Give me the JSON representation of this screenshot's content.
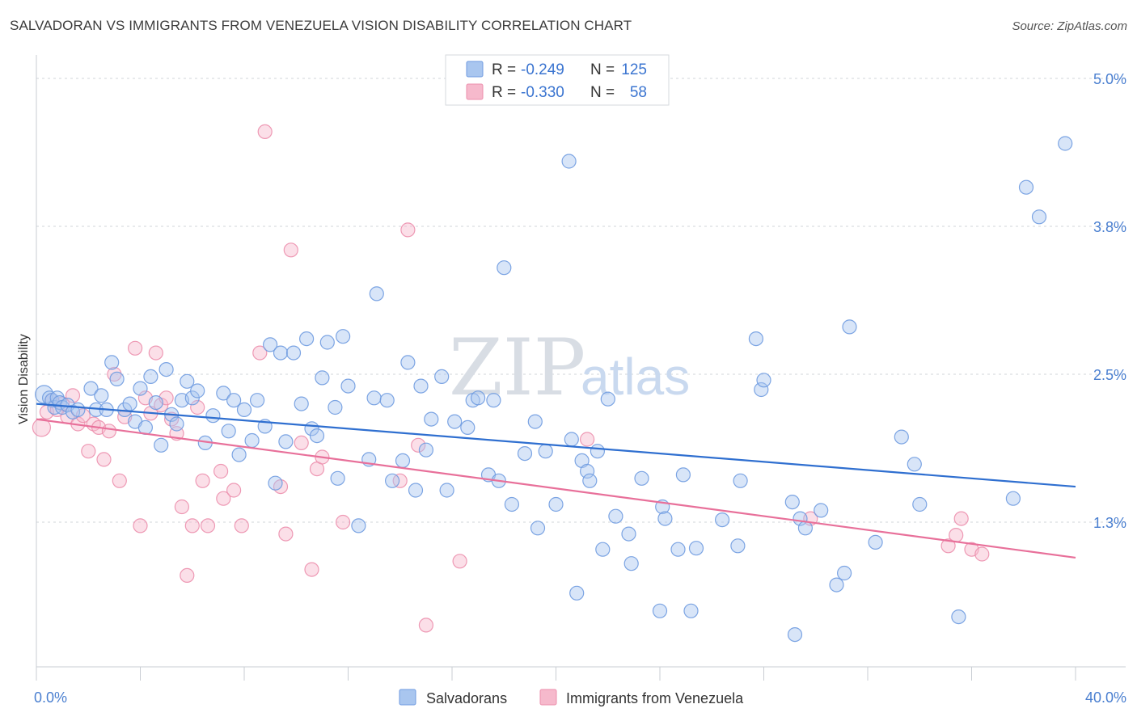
{
  "title": "SALVADORAN VS IMMIGRANTS FROM VENEZUELA VISION DISABILITY CORRELATION CHART",
  "source": "Source: ZipAtlas.com",
  "watermark": {
    "zip": "ZIP",
    "atlas": "atlas"
  },
  "colors": {
    "blue_fill": "#a9c6ef",
    "blue_stroke": "#6f9be0",
    "blue_line": "#2f6fd0",
    "pink_fill": "#f6b9cc",
    "pink_stroke": "#ec8fad",
    "pink_line": "#e8709a",
    "grid": "#d0d4da",
    "axis_text": "#4a7fd0"
  },
  "legend": {
    "rows": [
      {
        "r_label": "R =",
        "r_value": "-0.249",
        "n_label": "N =",
        "n_value": "125"
      },
      {
        "r_label": "R =",
        "r_value": "-0.330",
        "n_label": "N =",
        "n_value": "58"
      }
    ]
  },
  "chart_data": {
    "type": "scatter",
    "title": "SALVADORAN VS IMMIGRANTS FROM VENEZUELA VISION DISABILITY CORRELATION CHART",
    "xlabel": "",
    "ylabel": "Vision Disability",
    "xlim": [
      0,
      40
    ],
    "ylim": [
      0,
      5.2
    ],
    "x_tick_labels": [
      "0.0%",
      "40.0%"
    ],
    "y_ticks": [
      {
        "value": 1.25,
        "label": "1.3%"
      },
      {
        "value": 2.5,
        "label": "2.5%"
      },
      {
        "value": 3.75,
        "label": "3.8%"
      },
      {
        "value": 5.0,
        "label": "5.0%"
      }
    ],
    "legend_position": "top-center",
    "series": [
      {
        "name": "Salvadorans",
        "r": -0.249,
        "n": 125,
        "trend": {
          "x0": 0,
          "y0": 2.25,
          "x1": 40,
          "y1": 1.55
        },
        "points": [
          [
            0.3,
            2.33
          ],
          [
            0.5,
            2.3
          ],
          [
            0.6,
            2.28
          ],
          [
            0.7,
            2.22
          ],
          [
            0.8,
            2.3
          ],
          [
            0.9,
            2.26
          ],
          [
            1.0,
            2.22
          ],
          [
            1.2,
            2.24
          ],
          [
            1.4,
            2.18
          ],
          [
            1.6,
            2.2
          ],
          [
            2.1,
            2.38
          ],
          [
            2.3,
            2.2
          ],
          [
            2.5,
            2.32
          ],
          [
            2.7,
            2.2
          ],
          [
            2.9,
            2.6
          ],
          [
            3.1,
            2.46
          ],
          [
            3.4,
            2.2
          ],
          [
            3.6,
            2.25
          ],
          [
            3.8,
            2.1
          ],
          [
            4.0,
            2.38
          ],
          [
            4.2,
            2.05
          ],
          [
            4.4,
            2.48
          ],
          [
            4.6,
            2.26
          ],
          [
            4.8,
            1.9
          ],
          [
            5.0,
            2.54
          ],
          [
            5.2,
            2.16
          ],
          [
            5.4,
            2.08
          ],
          [
            5.6,
            2.28
          ],
          [
            5.8,
            2.44
          ],
          [
            6.0,
            2.3
          ],
          [
            6.2,
            2.36
          ],
          [
            6.5,
            1.92
          ],
          [
            6.8,
            2.15
          ],
          [
            7.2,
            2.34
          ],
          [
            7.4,
            2.02
          ],
          [
            7.6,
            2.28
          ],
          [
            7.8,
            1.82
          ],
          [
            8.0,
            2.2
          ],
          [
            8.3,
            1.94
          ],
          [
            8.5,
            2.28
          ],
          [
            8.8,
            2.06
          ],
          [
            9.0,
            2.75
          ],
          [
            9.2,
            1.58
          ],
          [
            9.4,
            2.68
          ],
          [
            9.6,
            1.93
          ],
          [
            9.9,
            2.68
          ],
          [
            10.2,
            2.25
          ],
          [
            10.4,
            2.8
          ],
          [
            10.6,
            2.04
          ],
          [
            10.8,
            1.98
          ],
          [
            11.0,
            2.47
          ],
          [
            11.2,
            2.77
          ],
          [
            11.5,
            2.22
          ],
          [
            11.8,
            2.82
          ],
          [
            11.6,
            1.62
          ],
          [
            12.0,
            2.4
          ],
          [
            12.4,
            1.22
          ],
          [
            12.8,
            1.78
          ],
          [
            13.0,
            2.3
          ],
          [
            13.1,
            3.18
          ],
          [
            13.5,
            2.28
          ],
          [
            13.7,
            1.6
          ],
          [
            14.1,
            1.77
          ],
          [
            14.3,
            2.6
          ],
          [
            14.6,
            1.52
          ],
          [
            14.8,
            2.4
          ],
          [
            15.0,
            1.86
          ],
          [
            15.2,
            2.12
          ],
          [
            15.6,
            2.48
          ],
          [
            15.8,
            1.52
          ],
          [
            16.1,
            2.1
          ],
          [
            16.6,
            2.05
          ],
          [
            16.8,
            2.28
          ],
          [
            17.0,
            2.3
          ],
          [
            17.4,
            1.65
          ],
          [
            17.6,
            2.28
          ],
          [
            17.8,
            1.6
          ],
          [
            18.0,
            3.4
          ],
          [
            18.3,
            1.4
          ],
          [
            18.8,
            1.83
          ],
          [
            19.2,
            2.1
          ],
          [
            19.3,
            1.2
          ],
          [
            19.6,
            1.85
          ],
          [
            20.0,
            1.4
          ],
          [
            20.5,
            4.3
          ],
          [
            20.6,
            1.95
          ],
          [
            20.8,
            0.65
          ],
          [
            21.0,
            1.77
          ],
          [
            21.2,
            1.68
          ],
          [
            21.3,
            1.6
          ],
          [
            21.6,
            1.85
          ],
          [
            21.8,
            1.02
          ],
          [
            22.0,
            2.29
          ],
          [
            22.3,
            1.3
          ],
          [
            22.8,
            1.15
          ],
          [
            22.9,
            0.9
          ],
          [
            23.3,
            1.62
          ],
          [
            24.0,
            0.5
          ],
          [
            24.1,
            1.38
          ],
          [
            24.2,
            1.28
          ],
          [
            24.7,
            1.02
          ],
          [
            24.9,
            1.65
          ],
          [
            25.2,
            0.5
          ],
          [
            25.4,
            1.03
          ],
          [
            26.4,
            1.27
          ],
          [
            27.0,
            1.05
          ],
          [
            27.1,
            1.6
          ],
          [
            27.7,
            2.8
          ],
          [
            27.9,
            2.37
          ],
          [
            28.0,
            2.45
          ],
          [
            29.1,
            1.42
          ],
          [
            29.2,
            0.3
          ],
          [
            29.4,
            1.28
          ],
          [
            29.6,
            1.2
          ],
          [
            30.2,
            1.35
          ],
          [
            30.8,
            0.72
          ],
          [
            31.3,
            2.9
          ],
          [
            31.1,
            0.82
          ],
          [
            32.3,
            1.08
          ],
          [
            33.3,
            1.97
          ],
          [
            33.8,
            1.74
          ],
          [
            34.0,
            1.4
          ],
          [
            35.5,
            0.45
          ],
          [
            37.6,
            1.45
          ],
          [
            38.1,
            4.08
          ],
          [
            38.6,
            3.83
          ],
          [
            39.6,
            4.45
          ]
        ]
      },
      {
        "name": "Immigrants from Venezuela",
        "r": -0.33,
        "n": 58,
        "trend": {
          "x0": 0,
          "y0": 2.12,
          "x1": 40,
          "y1": 0.95
        },
        "points": [
          [
            0.2,
            2.05
          ],
          [
            0.4,
            2.18
          ],
          [
            0.6,
            2.28
          ],
          [
            0.8,
            2.2
          ],
          [
            1.0,
            2.25
          ],
          [
            1.2,
            2.14
          ],
          [
            1.4,
            2.32
          ],
          [
            1.6,
            2.08
          ],
          [
            1.8,
            2.15
          ],
          [
            2.0,
            1.85
          ],
          [
            2.2,
            2.08
          ],
          [
            2.4,
            2.05
          ],
          [
            2.6,
            1.78
          ],
          [
            2.8,
            2.02
          ],
          [
            3.0,
            2.5
          ],
          [
            3.2,
            1.6
          ],
          [
            3.4,
            2.14
          ],
          [
            3.8,
            2.72
          ],
          [
            4.0,
            1.22
          ],
          [
            4.2,
            2.3
          ],
          [
            4.4,
            2.17
          ],
          [
            4.6,
            2.68
          ],
          [
            4.8,
            2.24
          ],
          [
            5.0,
            2.3
          ],
          [
            5.2,
            2.12
          ],
          [
            5.4,
            2.0
          ],
          [
            5.6,
            1.38
          ],
          [
            5.8,
            0.8
          ],
          [
            6.0,
            1.22
          ],
          [
            6.2,
            2.22
          ],
          [
            6.4,
            1.6
          ],
          [
            6.6,
            1.22
          ],
          [
            7.1,
            1.68
          ],
          [
            7.2,
            1.45
          ],
          [
            7.6,
            1.52
          ],
          [
            7.9,
            1.22
          ],
          [
            8.6,
            2.68
          ],
          [
            8.8,
            4.55
          ],
          [
            9.4,
            1.55
          ],
          [
            9.6,
            1.15
          ],
          [
            9.8,
            3.55
          ],
          [
            10.2,
            1.92
          ],
          [
            10.6,
            0.85
          ],
          [
            10.8,
            1.7
          ],
          [
            11.0,
            1.8
          ],
          [
            11.8,
            1.25
          ],
          [
            14.0,
            1.6
          ],
          [
            14.3,
            3.72
          ],
          [
            14.7,
            1.9
          ],
          [
            15.0,
            0.38
          ],
          [
            16.3,
            0.92
          ],
          [
            21.2,
            1.95
          ],
          [
            29.8,
            1.28
          ],
          [
            35.1,
            1.05
          ],
          [
            35.4,
            1.14
          ],
          [
            35.6,
            1.28
          ],
          [
            36.0,
            1.02
          ],
          [
            36.4,
            0.98
          ]
        ]
      }
    ]
  }
}
